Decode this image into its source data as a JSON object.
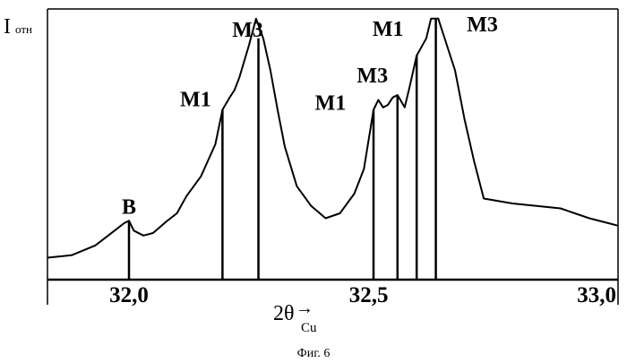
{
  "chart_data": {
    "type": "line",
    "title": "",
    "ylabel": {
      "main": "I",
      "sub": "отн"
    },
    "xlabel": {
      "main": "2θ",
      "sub": "Cu",
      "arrow": "→"
    },
    "caption": "Фиг. 6",
    "xlim": [
      31.83,
      33.02
    ],
    "ylim": [
      0,
      100
    ],
    "x_ticks": [
      {
        "value": 32.0,
        "label": "32,0"
      },
      {
        "value": 32.5,
        "label": "32,5"
      },
      {
        "value": 33.0,
        "label": "33,0"
      }
    ],
    "profile": [
      [
        31.83,
        2
      ],
      [
        31.88,
        3
      ],
      [
        31.93,
        7
      ],
      [
        31.97,
        13
      ],
      [
        31.99,
        16
      ],
      [
        32.0,
        17
      ],
      [
        32.01,
        13
      ],
      [
        32.03,
        11
      ],
      [
        32.05,
        12
      ],
      [
        32.08,
        17
      ],
      [
        32.1,
        20
      ],
      [
        32.12,
        27
      ],
      [
        32.15,
        35
      ],
      [
        32.18,
        48
      ],
      [
        32.195,
        62
      ],
      [
        32.21,
        67
      ],
      [
        32.22,
        70
      ],
      [
        32.23,
        75
      ],
      [
        32.25,
        88
      ],
      [
        32.265,
        99
      ],
      [
        32.28,
        91
      ],
      [
        32.295,
        78
      ],
      [
        32.31,
        62
      ],
      [
        32.325,
        47
      ],
      [
        32.35,
        31
      ],
      [
        32.38,
        23
      ],
      [
        32.41,
        18
      ],
      [
        32.44,
        20
      ],
      [
        32.47,
        28
      ],
      [
        32.49,
        38
      ],
      [
        32.51,
        62
      ],
      [
        32.52,
        66
      ],
      [
        32.53,
        63
      ],
      [
        32.54,
        64
      ],
      [
        32.55,
        67
      ],
      [
        32.56,
        68
      ],
      [
        32.575,
        63
      ],
      [
        32.585,
        71
      ],
      [
        32.6,
        84
      ],
      [
        32.62,
        91
      ],
      [
        32.63,
        99
      ],
      [
        32.645,
        99
      ],
      [
        32.66,
        90
      ],
      [
        32.68,
        78
      ],
      [
        32.7,
        58
      ],
      [
        32.72,
        41
      ],
      [
        32.74,
        26
      ],
      [
        32.8,
        24
      ],
      [
        32.9,
        22
      ],
      [
        32.96,
        18
      ],
      [
        33.0,
        16
      ],
      [
        33.02,
        15
      ]
    ],
    "peak_markers": [
      {
        "label": "B",
        "x": 32.0,
        "y": 17
      },
      {
        "label": "M1",
        "x": 32.195,
        "y": 62
      },
      {
        "label": "M3",
        "x": 32.27,
        "y": 91
      },
      {
        "label": "M1",
        "x": 32.51,
        "y": 62
      },
      {
        "label": "M3",
        "x": 32.56,
        "y": 68
      },
      {
        "label": "M1",
        "x": 32.6,
        "y": 84
      },
      {
        "label": "M3",
        "x": 32.64,
        "y": 99
      }
    ],
    "grid": false,
    "legend": "none"
  }
}
